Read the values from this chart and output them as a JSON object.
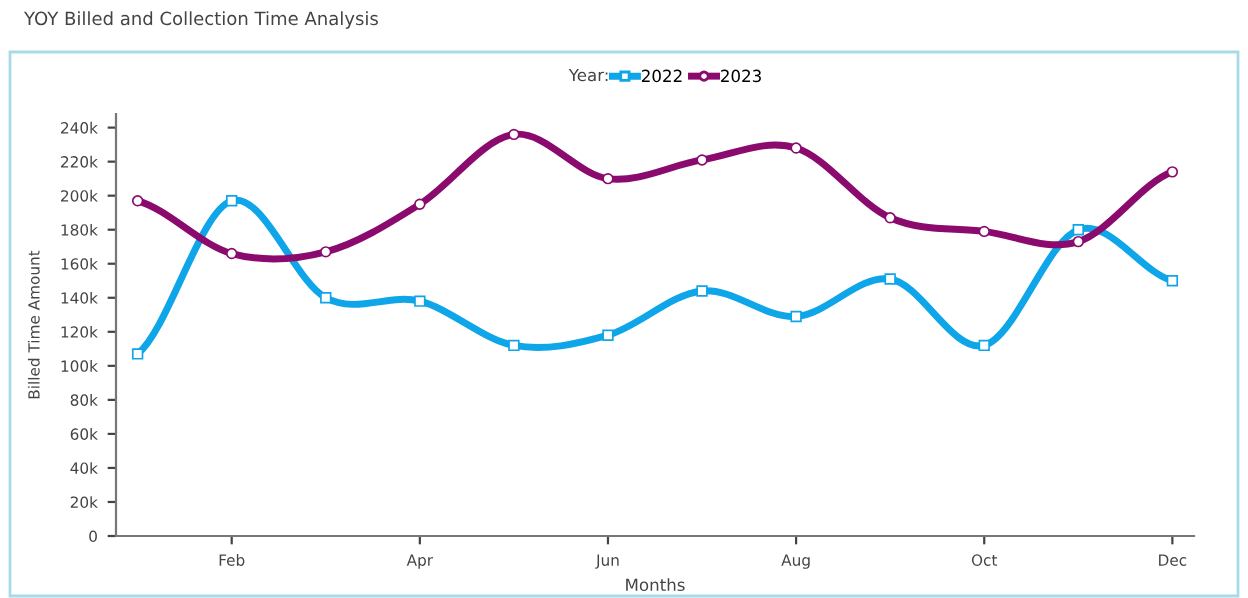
{
  "chart_data": {
    "type": "line",
    "title": "YOY Billed and Collection Time Analysis",
    "xlabel": "Months",
    "ylabel": "Billed Time Amount",
    "legend_title": "Year:",
    "legend": "top",
    "categories": [
      null,
      "Feb",
      null,
      "Apr",
      null,
      "Jun",
      null,
      "Aug",
      null,
      "Oct",
      null,
      "Dec"
    ],
    "series": [
      {
        "name": "2022",
        "color": "#0ea5e9",
        "marker": "square",
        "values": [
          107000,
          197000,
          140000,
          138000,
          112000,
          118000,
          144000,
          129000,
          151000,
          112000,
          180000,
          150000
        ]
      },
      {
        "name": "2023",
        "color": "#8b0a6e",
        "marker": "circle",
        "values": [
          197000,
          166000,
          167000,
          195000,
          236000,
          210000,
          221000,
          228000,
          187000,
          179000,
          173000,
          214000
        ]
      }
    ],
    "ylim": [
      0,
      248000
    ],
    "yticks": [
      {
        "value": 0,
        "label": "0"
      },
      {
        "value": 20000,
        "label": "20k"
      },
      {
        "value": 40000,
        "label": "40k"
      },
      {
        "value": 60000,
        "label": "60k"
      },
      {
        "value": 80000,
        "label": "80k"
      },
      {
        "value": 100000,
        "label": "100k"
      },
      {
        "value": 120000,
        "label": "120k"
      },
      {
        "value": 140000,
        "label": "140k"
      },
      {
        "value": 160000,
        "label": "160k"
      },
      {
        "value": 180000,
        "label": "180k"
      },
      {
        "value": 200000,
        "label": "200k"
      },
      {
        "value": 220000,
        "label": "220k"
      },
      {
        "value": 240000,
        "label": "240k"
      }
    ],
    "grid": false
  }
}
